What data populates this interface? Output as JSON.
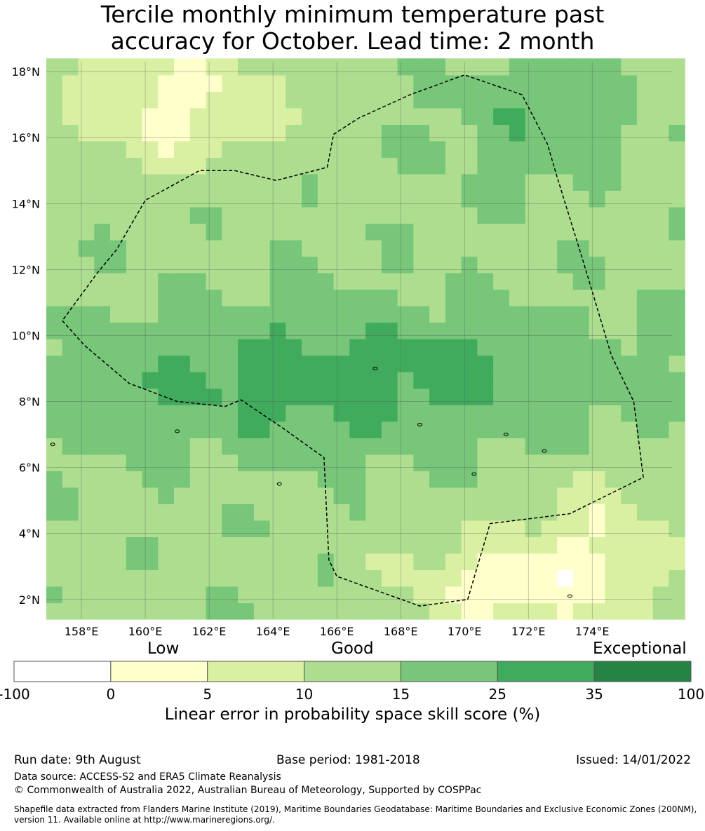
{
  "title": {
    "line1": "Tercile monthly minimum temperature past",
    "line2": "accuracy for October. Lead time: 2 month"
  },
  "map": {
    "lat_range": [
      1.4,
      18.3
    ],
    "lon_range": [
      156.9,
      176.5
    ],
    "lat_ticks": [
      "2°N",
      "4°N",
      "6°N",
      "8°N",
      "10°N",
      "12°N",
      "14°N",
      "16°N",
      "18°N"
    ],
    "lat_tick_values": [
      2,
      4,
      6,
      8,
      10,
      12,
      14,
      16,
      18
    ],
    "lon_ticks": [
      "158°E",
      "160°E",
      "162°E",
      "164°E",
      "166°E",
      "168°E",
      "170°E",
      "172°E",
      "174°E"
    ],
    "lon_tick_values": [
      158,
      160,
      162,
      164,
      166,
      168,
      170,
      172,
      174
    ],
    "eez_boundary": [
      [
        157.4,
        10.45
      ],
      [
        158.1,
        9.7
      ],
      [
        159.5,
        8.55
      ],
      [
        161.0,
        8.0
      ],
      [
        162.5,
        7.85
      ],
      [
        163.0,
        8.05
      ],
      [
        164.3,
        7.2
      ],
      [
        165.6,
        6.3
      ],
      [
        165.75,
        3.2
      ],
      [
        166.0,
        2.7
      ],
      [
        168.6,
        1.8
      ],
      [
        170.1,
        2.0
      ],
      [
        170.8,
        4.3
      ],
      [
        173.3,
        4.6
      ],
      [
        175.6,
        5.7
      ],
      [
        175.3,
        8.0
      ],
      [
        174.6,
        9.4
      ],
      [
        173.7,
        12.3
      ],
      [
        172.9,
        14.8
      ],
      [
        172.6,
        15.8
      ],
      [
        171.8,
        17.3
      ],
      [
        170.0,
        17.9
      ],
      [
        168.3,
        17.3
      ],
      [
        166.7,
        16.6
      ],
      [
        165.9,
        16.1
      ],
      [
        165.7,
        15.1
      ],
      [
        164.1,
        14.7
      ],
      [
        162.8,
        15.0
      ],
      [
        161.7,
        15.0
      ],
      [
        160.0,
        14.1
      ],
      [
        159.1,
        12.6
      ],
      [
        158.5,
        11.9
      ],
      [
        157.4,
        10.45
      ]
    ]
  },
  "legend": {
    "word_low": "Low",
    "word_good": "Good",
    "word_exceptional": "Exceptional",
    "bins": [
      {
        "label": "-100",
        "color": "#ffffff"
      },
      {
        "label": "0",
        "color": "#ffffcc"
      },
      {
        "label": "5",
        "color": "#d9f0a3"
      },
      {
        "label": "10",
        "color": "#addd8e"
      },
      {
        "label": "15",
        "color": "#78c679"
      },
      {
        "label": "25",
        "color": "#41ab5d"
      },
      {
        "label": "35",
        "color": "#238443"
      }
    ],
    "end_label": "100",
    "title": "Linear error in probability space skill score (%)"
  },
  "footer": {
    "run_date": "Run date: 9th August",
    "base_period": "Base period: 1981-2018",
    "issued": "Issued: 14/01/2022",
    "data_source": "Data source: ACCESS-S2 and ERA5 Climate Reanalysis",
    "copyright": "© Commonwealth of Australia 2022, Australian Bureau of Meteorology, Supported by COSPPac",
    "shapefile": "Shapefile data extracted from Flanders Marine Institute (2019), Maritime Boundaries Geodatabase: Maritime Boundaries and Exclusive Economic Zones (200NM), version 11. Available online at http://www.marineregions.org/."
  }
}
